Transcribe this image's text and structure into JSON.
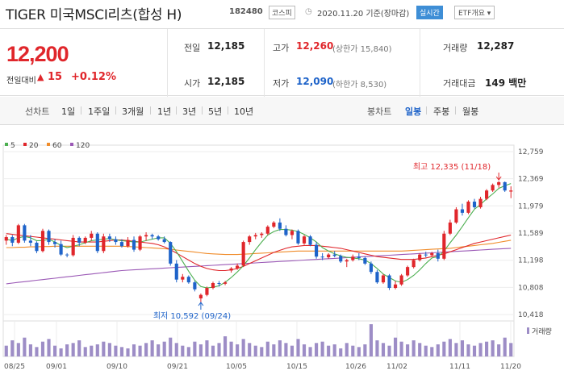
{
  "header": {
    "title": "TIGER 미국MSCI리츠(합성 H)",
    "code": "182480",
    "market": "코스피",
    "asof": "2020.11.20 기준(장마감)",
    "realtime_label": "실시간",
    "etf_label": "ETF개요 ▾"
  },
  "quote": {
    "price": "12,200",
    "change_label": "전일대비",
    "change_arrow": "▲",
    "change": "15",
    "change_pct": "+0.12%",
    "prev_close_label": "전일",
    "prev_close": "12,185",
    "open_label": "시가",
    "open": "12,185",
    "high_label": "고가",
    "high": "12,260",
    "upper_limit": "(상한가 15,840)",
    "low_label": "저가",
    "low": "12,090",
    "lower_limit": "(하한가 8,530)",
    "volume_label": "거래량",
    "volume": "12,287",
    "amount_label": "거래대금",
    "amount": "149 백만"
  },
  "tabs": {
    "line_chart": "선차트",
    "periods": [
      "1일",
      "1주일",
      "3개월",
      "1년",
      "3년",
      "5년",
      "10년"
    ],
    "candle_chart": "봉차트",
    "candle_periods": [
      "일봉",
      "주봉",
      "월봉"
    ]
  },
  "colors": {
    "up": "#e0262b",
    "down": "#1e63c9",
    "ma5": "#4caf50",
    "ma20": "#e0262b",
    "ma60": "#f08c2a",
    "ma120": "#9b59b6",
    "volume": "#9d8dc6"
  },
  "chart_data": {
    "type": "candlestick",
    "legend": [
      "5",
      "20",
      "60",
      "120"
    ],
    "y_ticks": [
      "12,759",
      "12,369",
      "11,979",
      "11,589",
      "11,198",
      "10,808",
      "10,418"
    ],
    "ylim": [
      10418,
      12759
    ],
    "x_labels": [
      "08/25",
      "09/01",
      "09/10",
      "09/21",
      "10/05",
      "10/15",
      "10/26",
      "11/02",
      "11/11",
      "11/20"
    ],
    "volume_label": "거래량",
    "annotations": {
      "high": "최고 12,335 (11/18)",
      "low": "최저 10,592 (09/24)"
    },
    "candles": [
      [
        11480,
        11560,
        11420,
        11530
      ],
      [
        11530,
        11560,
        11400,
        11450
      ],
      [
        11450,
        11720,
        11430,
        11700
      ],
      [
        11700,
        11720,
        11450,
        11480
      ],
      [
        11480,
        11560,
        11400,
        11450
      ],
      [
        11450,
        11470,
        11300,
        11330
      ],
      [
        11330,
        11650,
        11310,
        11620
      ],
      [
        11620,
        11640,
        11420,
        11460
      ],
      [
        11460,
        11500,
        11380,
        11430
      ],
      [
        11430,
        11480,
        11260,
        11280
      ],
      [
        11280,
        11300,
        11240,
        11270
      ],
      [
        11270,
        11560,
        11250,
        11520
      ],
      [
        11520,
        11540,
        11400,
        11450
      ],
      [
        11450,
        11540,
        11430,
        11520
      ],
      [
        11520,
        11620,
        11480,
        11580
      ],
      [
        11580,
        11600,
        11300,
        11330
      ],
      [
        11330,
        11580,
        11300,
        11540
      ],
      [
        11540,
        11580,
        11460,
        11500
      ],
      [
        11500,
        11540,
        11420,
        11460
      ],
      [
        11460,
        11500,
        11380,
        11400
      ],
      [
        11400,
        11530,
        11380,
        11490
      ],
      [
        11490,
        11540,
        11320,
        11350
      ],
      [
        11350,
        11560,
        11330,
        11540
      ],
      [
        11540,
        11600,
        11480,
        11560
      ],
      [
        11560,
        11580,
        11500,
        11540
      ],
      [
        11540,
        11560,
        11480,
        11500
      ],
      [
        11500,
        11540,
        11440,
        11460
      ],
      [
        11460,
        11470,
        11120,
        11150
      ],
      [
        11150,
        11200,
        10880,
        10920
      ],
      [
        10920,
        11000,
        10880,
        10960
      ],
      [
        10960,
        10980,
        10860,
        10880
      ],
      [
        10880,
        10900,
        10750,
        10780
      ],
      [
        10650,
        10720,
        10592,
        10700
      ],
      [
        10700,
        10820,
        10680,
        10800
      ],
      [
        10800,
        10890,
        10780,
        10870
      ],
      [
        10870,
        10900,
        10820,
        10860
      ],
      [
        10860,
        10900,
        10840,
        10880
      ],
      [
        11050,
        11100,
        11020,
        11080
      ],
      [
        11080,
        11150,
        11060,
        11120
      ],
      [
        11120,
        11480,
        11100,
        11460
      ],
      [
        11460,
        11560,
        11420,
        11540
      ],
      [
        11540,
        11590,
        11500,
        11560
      ],
      [
        11560,
        11600,
        11520,
        11580
      ],
      [
        11580,
        11700,
        11560,
        11680
      ],
      [
        11680,
        11760,
        11660,
        11740
      ],
      [
        11740,
        11800,
        11620,
        11650
      ],
      [
        11650,
        11700,
        11540,
        11560
      ],
      [
        11560,
        11640,
        11500,
        11620
      ],
      [
        11620,
        11640,
        11420,
        11440
      ],
      [
        11440,
        11560,
        11420,
        11540
      ],
      [
        11540,
        11560,
        11400,
        11420
      ],
      [
        11420,
        11460,
        11220,
        11250
      ],
      [
        11250,
        11300,
        11200,
        11240
      ],
      [
        11240,
        11300,
        11220,
        11280
      ],
      [
        11280,
        11330,
        11240,
        11260
      ],
      [
        11260,
        11280,
        11160,
        11180
      ],
      [
        11180,
        11220,
        11100,
        11200
      ],
      [
        11200,
        11280,
        11180,
        11250
      ],
      [
        11250,
        11300,
        11200,
        11230
      ],
      [
        11230,
        11250,
        11130,
        11150
      ],
      [
        11150,
        11180,
        11000,
        11030
      ],
      [
        11030,
        11060,
        10860,
        10880
      ],
      [
        10880,
        11000,
        10860,
        10980
      ],
      [
        10980,
        11000,
        10770,
        10800
      ],
      [
        10800,
        10900,
        10780,
        10850
      ],
      [
        10850,
        11000,
        10830,
        10980
      ],
      [
        10980,
        11120,
        10960,
        11100
      ],
      [
        11100,
        11220,
        11080,
        11200
      ],
      [
        11200,
        11300,
        11180,
        11280
      ],
      [
        11280,
        11320,
        11240,
        11270
      ],
      [
        11270,
        11320,
        11250,
        11300
      ],
      [
        11300,
        11350,
        11180,
        11220
      ],
      [
        11220,
        11620,
        11200,
        11580
      ],
      [
        11580,
        11780,
        11560,
        11740
      ],
      [
        11740,
        11960,
        11720,
        11930
      ],
      [
        11930,
        12010,
        11840,
        11880
      ],
      [
        11880,
        12060,
        11860,
        12040
      ],
      [
        12040,
        12080,
        11940,
        11960
      ],
      [
        11960,
        12110,
        11940,
        12080
      ],
      [
        12080,
        12220,
        12060,
        12200
      ],
      [
        12200,
        12300,
        12180,
        12280
      ],
      [
        12280,
        12335,
        12240,
        12320
      ],
      [
        12320,
        12330,
        12180,
        12200
      ],
      [
        12185,
        12260,
        12090,
        12200
      ]
    ],
    "ma5": [
      11500,
      11480,
      11520,
      11540,
      11520,
      11480,
      11480,
      11500,
      11460,
      11410,
      11380,
      11400,
      11420,
      11450,
      11480,
      11490,
      11500,
      11510,
      11490,
      11480,
      11470,
      11460,
      11460,
      11480,
      11500,
      11520,
      11520,
      11440,
      11320,
      11180,
      11040,
      10910,
      10820,
      10800,
      10810,
      10830,
      10880,
      10950,
      11030,
      11120,
      11230,
      11350,
      11460,
      11560,
      11610,
      11640,
      11640,
      11630,
      11610,
      11570,
      11520,
      11460,
      11380,
      11330,
      11290,
      11260,
      11240,
      11230,
      11220,
      11200,
      11150,
      11080,
      11000,
      10950,
      10900,
      10880,
      10920,
      10980,
      11060,
      11150,
      11230,
      11250,
      11330,
      11450,
      11560,
      11680,
      11810,
      11930,
      12000,
      12080,
      12150,
      12230,
      12270,
      12300
    ],
    "ma20": [
      11580,
      11570,
      11560,
      11550,
      11540,
      11530,
      11520,
      11510,
      11500,
      11490,
      11480,
      11470,
      11460,
      11460,
      11460,
      11460,
      11470,
      11480,
      11490,
      11490,
      11480,
      11470,
      11460,
      11450,
      11440,
      11420,
      11390,
      11350,
      11300,
      11250,
      11200,
      11150,
      11110,
      11080,
      11060,
      11050,
      11050,
      11060,
      11080,
      11110,
      11150,
      11190,
      11230,
      11270,
      11310,
      11340,
      11370,
      11390,
      11400,
      11410,
      11410,
      11410,
      11400,
      11390,
      11380,
      11370,
      11350,
      11330,
      11310,
      11290,
      11270,
      11250,
      11240,
      11230,
      11220,
      11210,
      11210,
      11210,
      11220,
      11230,
      11250,
      11270,
      11290,
      11320,
      11350,
      11380,
      11410,
      11440,
      11460,
      11480,
      11500,
      11520,
      11540,
      11560
    ],
    "ma60": [
      11380,
      11380,
      11385,
      11385,
      11390,
      11390,
      11395,
      11395,
      11400,
      11400,
      11400,
      11400,
      11400,
      11400,
      11400,
      11400,
      11400,
      11400,
      11400,
      11400,
      11395,
      11390,
      11385,
      11380,
      11375,
      11370,
      11365,
      11355,
      11345,
      11335,
      11325,
      11315,
      11305,
      11295,
      11290,
      11285,
      11280,
      11280,
      11280,
      11285,
      11290,
      11295,
      11300,
      11305,
      11310,
      11315,
      11320,
      11325,
      11330,
      11330,
      11330,
      11330,
      11330,
      11330,
      11330,
      11330,
      11330,
      11330,
      11330,
      11330,
      11330,
      11330,
      11330,
      11330,
      11330,
      11330,
      11335,
      11340,
      11345,
      11350,
      11355,
      11360,
      11365,
      11370,
      11380,
      11390,
      11400,
      11410,
      11420,
      11430,
      11440,
      11455,
      11470,
      11485
    ],
    "ma120": [
      10860,
      10870,
      10880,
      10890,
      10900,
      10910,
      10920,
      10930,
      10940,
      10950,
      10960,
      10970,
      10980,
      10990,
      11000,
      11010,
      11020,
      11030,
      11040,
      11050,
      11055,
      11060,
      11065,
      11070,
      11075,
      11080,
      11085,
      11090,
      11095,
      11100,
      11105,
      11110,
      11115,
      11120,
      11125,
      11130,
      11135,
      11140,
      11145,
      11150,
      11155,
      11160,
      11165,
      11170,
      11175,
      11180,
      11185,
      11190,
      11195,
      11200,
      11205,
      11210,
      11215,
      11220,
      11225,
      11230,
      11235,
      11240,
      11245,
      11250,
      11255,
      11260,
      11265,
      11270,
      11275,
      11280,
      11285,
      11290,
      11295,
      11300,
      11305,
      11310,
      11315,
      11320,
      11325,
      11330,
      11335,
      11340,
      11345,
      11350,
      11355,
      11360,
      11365,
      11370
    ],
    "volume": [
      8,
      12,
      10,
      14,
      9,
      7,
      11,
      13,
      8,
      6,
      9,
      10,
      12,
      7,
      8,
      9,
      11,
      10,
      8,
      7,
      6,
      9,
      8,
      10,
      12,
      9,
      11,
      14,
      10,
      8,
      7,
      11,
      9,
      12,
      8,
      10,
      15,
      11,
      9,
      13,
      10,
      8,
      7,
      11,
      9,
      12,
      10,
      8,
      13,
      9,
      7,
      10,
      11,
      8,
      9,
      6,
      10,
      8,
      7,
      9,
      24,
      12,
      10,
      8,
      14,
      11,
      9,
      12,
      10,
      8,
      7,
      9,
      11,
      13,
      10,
      12,
      9,
      8,
      10,
      11,
      12,
      9,
      14,
      10
    ]
  }
}
